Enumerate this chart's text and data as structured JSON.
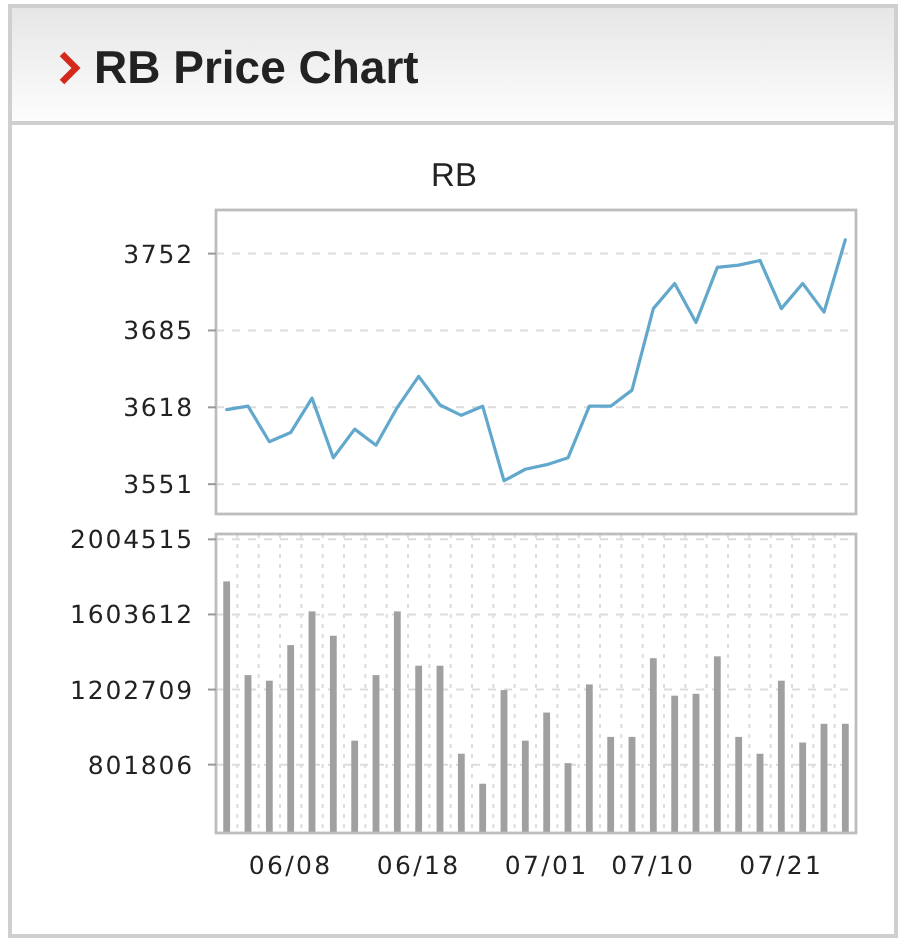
{
  "chart_data": [
    {
      "type": "line",
      "title": "RB Price Chart",
      "subtitle": "RB",
      "categories": [
        null,
        null,
        null,
        "06/08",
        null,
        null,
        null,
        null,
        null,
        "06/18",
        null,
        null,
        null,
        null,
        null,
        "07/01",
        null,
        null,
        null,
        null,
        "07/10",
        null,
        null,
        null,
        null,
        null,
        "07/21",
        null,
        null,
        null
      ],
      "values": [
        3616,
        3619,
        3588,
        3596,
        3626,
        3574,
        3599,
        3585,
        3618,
        3645,
        3620,
        3611,
        3619,
        3554,
        3564,
        3568,
        3574,
        3619,
        3619,
        3633,
        3704,
        3726,
        3692,
        3740,
        3742,
        3746,
        3704,
        3726,
        3701,
        3764
      ],
      "color": "#62a8cc",
      "ylim": [
        3525,
        3790
      ],
      "yticks": [
        3551,
        3618,
        3685,
        3752
      ],
      "grid": "y",
      "tick_labels": "y"
    },
    {
      "type": "bar",
      "categories": [
        null,
        null,
        null,
        "06/08",
        null,
        null,
        null,
        null,
        null,
        "06/18",
        null,
        null,
        null,
        null,
        null,
        "07/01",
        null,
        null,
        null,
        null,
        "07/10",
        null,
        null,
        null,
        null,
        null,
        "07/21",
        null,
        null,
        null
      ],
      "values": [
        1780000,
        1280000,
        1250000,
        1440000,
        1620000,
        1490000,
        930000,
        1280000,
        1620000,
        1330000,
        1330000,
        860000,
        700000,
        1200000,
        930000,
        1080000,
        810000,
        1230000,
        950000,
        950000,
        1370000,
        1170000,
        1180000,
        1380000,
        950000,
        860000,
        1250000,
        920000,
        1020000,
        1020000
      ],
      "color": "#a0a0a0",
      "ylim": [
        437000,
        2033000
      ],
      "yticks": [
        801806,
        1202709,
        1603612,
        2004515
      ],
      "grid": true
    }
  ]
}
